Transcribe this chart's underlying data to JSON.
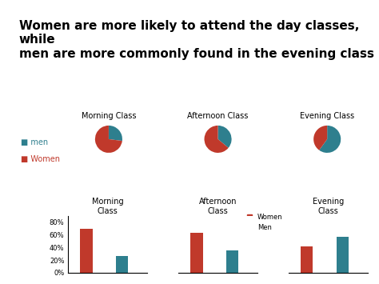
{
  "title": "Women are more likely to attend the day classes, while\nmen are more commonly found in the evening class",
  "pie_data": {
    "Morning Class": {
      "Women": 73,
      "Men": 27
    },
    "Afternoon Class": {
      "Women": 64,
      "Men": 36
    },
    "Evening Class": {
      "Women": 40,
      "Men": 60
    }
  },
  "bar_data": {
    "Morning Class": {
      "Women": 70,
      "Men": 27
    },
    "Afternoon Class": {
      "Women": 63,
      "Men": 35
    },
    "Evening Class": {
      "Women": 41,
      "Men": 57
    }
  },
  "color_women": "#c0392b",
  "color_men": "#2e7f8e",
  "bg_color": "#ffffff",
  "title_fontsize": 11,
  "pie_titles": [
    "Morning Class",
    "Afternoon Class",
    "Evening Class"
  ],
  "bar_titles": [
    "Morning\nClass",
    "Afternoon\nClass",
    "Evening\nClass"
  ],
  "yticks": [
    0,
    20,
    40,
    60,
    80
  ],
  "ytick_labels": [
    "0%",
    "20%",
    "40%",
    "60%",
    "80%"
  ]
}
